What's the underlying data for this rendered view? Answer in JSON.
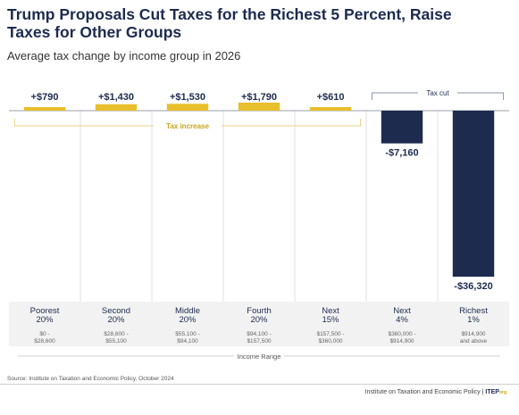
{
  "title": "Trump Proposals Cut Taxes for the Richest 5 Percent, Raise Taxes for Other Groups",
  "subtitle": "Average tax change by income group in 2026",
  "source": "Source: Institute on Taxation and Economic Policy, October 2024",
  "credit": {
    "org": "Institute on Taxation and Economic Policy",
    "sep": " | ",
    "brand": "ITEP",
    "brand_suffix": "org"
  },
  "chart_data": {
    "type": "bar",
    "categories": [
      "Poorest 20%",
      "Second 20%",
      "Middle 20%",
      "Fourth 20%",
      "Next 15%",
      "Next 4%",
      "Richest 1%"
    ],
    "category_lines": [
      [
        "Poorest",
        "20%"
      ],
      [
        "Second",
        "20%"
      ],
      [
        "Middle",
        "20%"
      ],
      [
        "Fourth",
        "20%"
      ],
      [
        "Next",
        "15%"
      ],
      [
        "Next",
        "4%"
      ],
      [
        "Richest",
        "1%"
      ]
    ],
    "ranges": [
      [
        "$0 -",
        "$28,600"
      ],
      [
        "$28,600 -",
        "$55,100"
      ],
      [
        "$55,100 -",
        "$94,100"
      ],
      [
        "$94,100 -",
        "$157,500"
      ],
      [
        "$157,500 -",
        "$360,000"
      ],
      [
        "$360,000 -",
        "$914,900"
      ],
      [
        "$914,900",
        "and above"
      ]
    ],
    "values": [
      790,
      1430,
      1530,
      1790,
      610,
      -7160,
      -36320
    ],
    "value_labels": [
      "+$790",
      "+$1,430",
      "+$1,530",
      "+$1,790",
      "+$610",
      "-$7,160",
      "-$36,320"
    ],
    "ylim": [
      -36320,
      1790
    ],
    "xlabel": "Income Range",
    "ylabel": "",
    "group_labels": {
      "increase": "Tax increase",
      "cut": "Tax cut"
    },
    "grid": false,
    "colors": {
      "increase": "#e8bf2c",
      "cut": "#1d2b4f",
      "bracket_increase": "#e8d38a",
      "bracket_cut": "#8a93a8"
    }
  }
}
